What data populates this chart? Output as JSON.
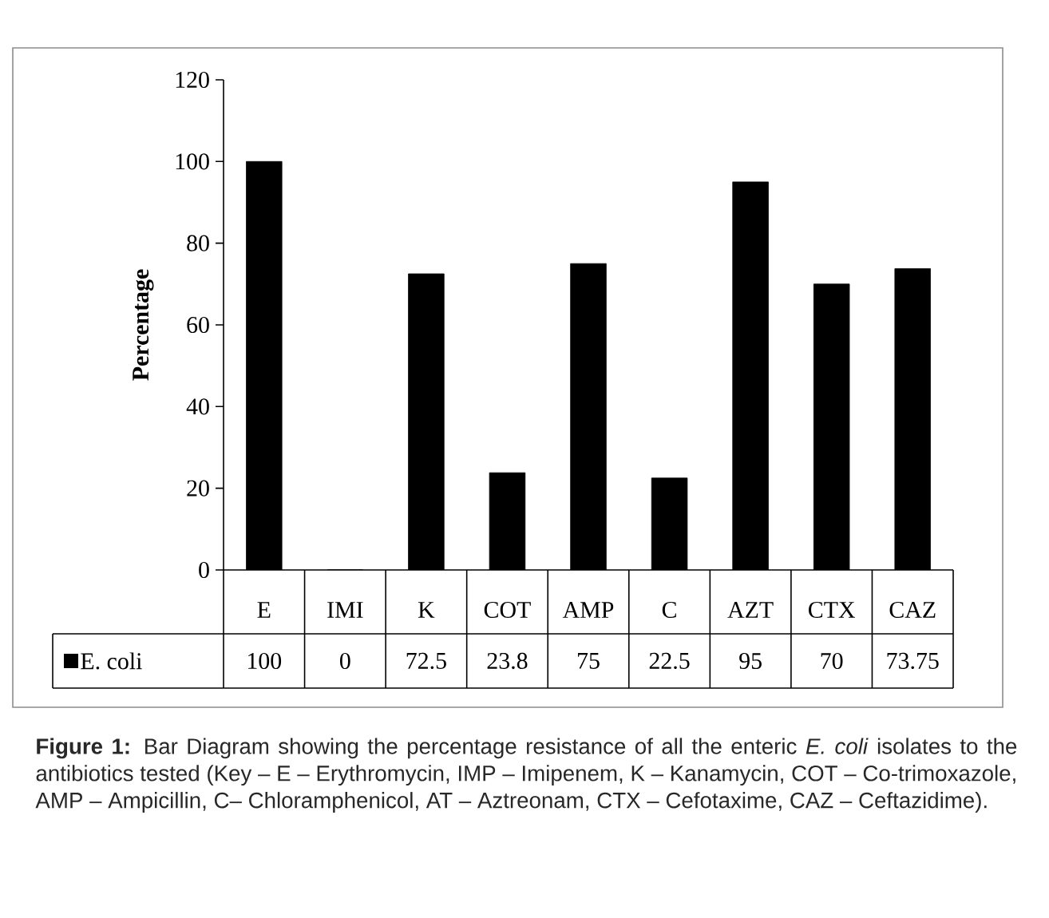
{
  "chart_data": {
    "type": "bar",
    "categories": [
      "E",
      "IMI",
      "K",
      "COT",
      "AMP",
      "C",
      "AZT",
      "CTX",
      "CAZ"
    ],
    "series": [
      {
        "name": "E. coli",
        "color": "#000000",
        "values": [
          100,
          0,
          72.5,
          23.8,
          75,
          22.5,
          95,
          70,
          73.75
        ]
      }
    ],
    "ylabel": "Percentage",
    "ylim": [
      0,
      120
    ],
    "yticks": [
      0,
      20,
      40,
      60,
      80,
      100,
      120
    ],
    "data_labels": true,
    "legend": "bottom",
    "grid": false,
    "annotations": [
      "**Figure 1:** Bar Diagram showing the percentage resistance of all the enteric *E. coli* isolates to the antibiotics tested (Key – E – Erythromycin, IMP – Imipenem, K – Kanamycin, COT – Co-trimoxazole, AMP – Ampicillin, C– Chloramphenicol, AT – Aztreonam, CTX – Cefotaxime, CAZ – Ceftazidime)."
    ]
  }
}
